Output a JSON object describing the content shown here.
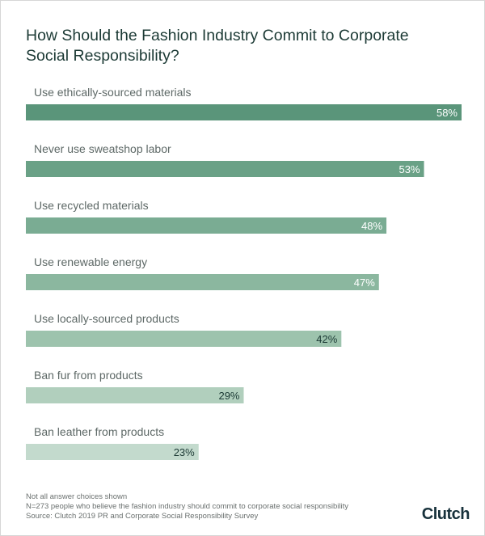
{
  "chart_data": {
    "type": "bar",
    "orientation": "horizontal",
    "title": "How Should the Fashion Industry Commit to Corporate Social Responsibility?",
    "categories": [
      "Use ethically-sourced materials",
      "Never use sweatshop labor",
      "Use recycled materials",
      "Use renewable energy",
      "Use locally-sourced products",
      "Ban fur from products",
      "Ban leather from products"
    ],
    "values": [
      58,
      53,
      48,
      47,
      42,
      29,
      23
    ],
    "value_labels": [
      "58%",
      "53%",
      "48%",
      "47%",
      "42%",
      "29%",
      "23%"
    ],
    "colors": [
      "#5a957a",
      "#6aa186",
      "#7aac93",
      "#8bb79f",
      "#9dc3ad",
      "#b1cfbd",
      "#c3dacd"
    ],
    "label_colors": [
      "#ffffff",
      "#ffffff",
      "#ffffff",
      "#ffffff",
      "#1c3a35",
      "#1c3a35",
      "#1c3a35"
    ],
    "xlim": [
      0,
      58
    ],
    "grid": false
  },
  "notes": [
    "Not all answer choices shown",
    "N=273 people who believe the fashion industry should commit to corporate social responsibility",
    "Source: Clutch 2019 PR and Corporate Social Responsibility Survey"
  ],
  "logo": "Clutch",
  "accent": "#e0413a"
}
